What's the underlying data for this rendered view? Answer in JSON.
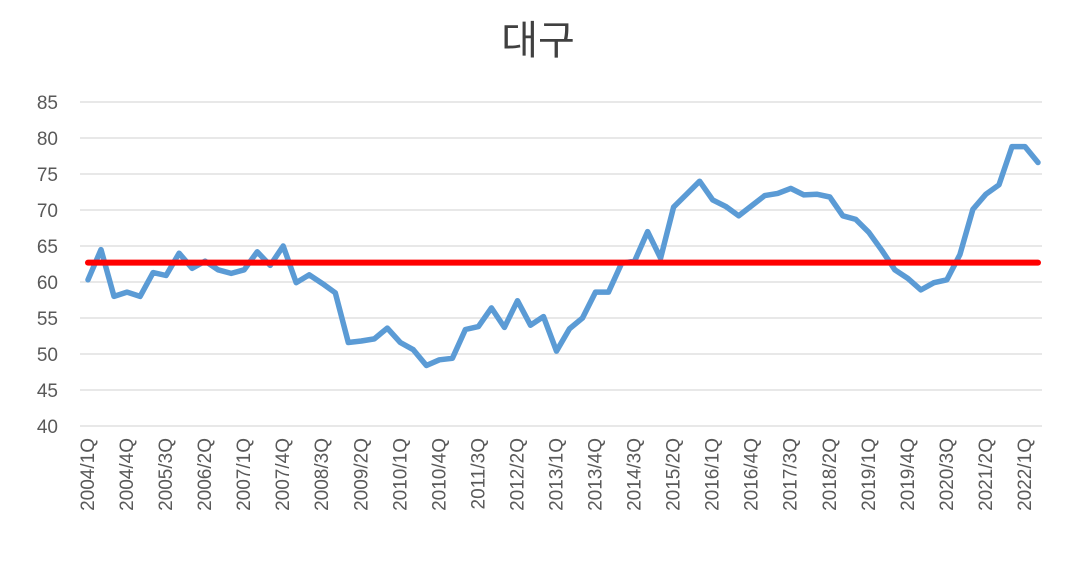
{
  "chart_data": {
    "type": "line",
    "title": "대구",
    "xlabel": "",
    "ylabel": "",
    "ylim": [
      40,
      85
    ],
    "yticks": [
      40,
      45,
      50,
      55,
      60,
      65,
      70,
      75,
      80,
      85
    ],
    "grid": true,
    "x_tick_labels": [
      "2004/1Q",
      "2004/4Q",
      "2005/3Q",
      "2006/2Q",
      "2007/1Q",
      "2007/4Q",
      "2008/3Q",
      "2009/2Q",
      "2010/1Q",
      "2010/4Q",
      "2011/3Q",
      "2012/2Q",
      "2013/1Q",
      "2013/4Q",
      "2014/3Q",
      "2015/2Q",
      "2016/1Q",
      "2016/4Q",
      "2017/3Q",
      "2018/2Q",
      "2019/1Q",
      "2019/4Q",
      "2020/3Q",
      "2021/2Q",
      "2022/1Q"
    ],
    "x": [
      "2004/1Q",
      "2004/2Q",
      "2004/3Q",
      "2004/4Q",
      "2005/1Q",
      "2005/2Q",
      "2005/3Q",
      "2005/4Q",
      "2006/1Q",
      "2006/2Q",
      "2006/3Q",
      "2006/4Q",
      "2007/1Q",
      "2007/2Q",
      "2007/3Q",
      "2007/4Q",
      "2008/1Q",
      "2008/2Q",
      "2008/3Q",
      "2008/4Q",
      "2009/1Q",
      "2009/2Q",
      "2009/3Q",
      "2009/4Q",
      "2010/1Q",
      "2010/2Q",
      "2010/3Q",
      "2010/4Q",
      "2011/1Q",
      "2011/2Q",
      "2011/3Q",
      "2011/4Q",
      "2012/1Q",
      "2012/2Q",
      "2012/3Q",
      "2012/4Q",
      "2013/1Q",
      "2013/2Q",
      "2013/3Q",
      "2013/4Q",
      "2014/1Q",
      "2014/2Q",
      "2014/3Q",
      "2014/4Q",
      "2015/1Q",
      "2015/2Q",
      "2015/3Q",
      "2015/4Q",
      "2016/1Q",
      "2016/2Q",
      "2016/3Q",
      "2016/4Q",
      "2017/1Q",
      "2017/2Q",
      "2017/3Q",
      "2017/4Q",
      "2018/1Q",
      "2018/2Q",
      "2018/3Q",
      "2018/4Q",
      "2019/1Q",
      "2019/2Q",
      "2019/3Q",
      "2019/4Q",
      "2020/1Q",
      "2020/2Q",
      "2020/3Q",
      "2020/4Q",
      "2021/1Q",
      "2021/2Q",
      "2021/3Q",
      "2021/4Q",
      "2022/1Q",
      "2022/2Q"
    ],
    "series": [
      {
        "color": "#5b9bd5",
        "values": [
          60.3,
          64.5,
          58.0,
          58.6,
          58.0,
          61.3,
          60.9,
          64.0,
          61.9,
          62.9,
          61.7,
          61.2,
          61.7,
          64.2,
          62.3,
          65.0,
          59.9,
          61.0,
          59.8,
          58.5,
          51.6,
          51.8,
          52.1,
          53.6,
          51.6,
          50.6,
          48.4,
          49.2,
          49.4,
          53.4,
          53.8,
          56.4,
          53.7,
          57.4,
          54.0,
          55.2,
          50.4,
          53.5,
          55.0,
          58.6,
          58.6,
          62.6,
          62.9,
          67.0,
          63.3,
          70.4,
          72.2,
          74.0,
          71.4,
          70.5,
          69.2,
          70.6,
          72.0,
          72.3,
          73.0,
          72.1,
          72.2,
          71.8,
          69.2,
          68.7,
          66.9,
          64.4,
          61.7,
          60.5,
          58.9,
          59.9,
          60.3,
          63.8,
          70.1,
          72.2,
          73.5,
          78.8,
          78.8,
          76.6
        ]
      },
      {
        "color": "#ff0000",
        "values": [
          62.7,
          62.7,
          62.7,
          62.7,
          62.7,
          62.7,
          62.7,
          62.7,
          62.7,
          62.7,
          62.7,
          62.7,
          62.7,
          62.7,
          62.7,
          62.7,
          62.7,
          62.7,
          62.7,
          62.7,
          62.7,
          62.7,
          62.7,
          62.7,
          62.7,
          62.7,
          62.7,
          62.7,
          62.7,
          62.7,
          62.7,
          62.7,
          62.7,
          62.7,
          62.7,
          62.7,
          62.7,
          62.7,
          62.7,
          62.7,
          62.7,
          62.7,
          62.7,
          62.7,
          62.7,
          62.7,
          62.7,
          62.7,
          62.7,
          62.7,
          62.7,
          62.7,
          62.7,
          62.7,
          62.7,
          62.7,
          62.7,
          62.7,
          62.7,
          62.7,
          62.7,
          62.7,
          62.7,
          62.7,
          62.7,
          62.7,
          62.7,
          62.7,
          62.7,
          62.7,
          62.7,
          62.7,
          62.7,
          62.7
        ]
      }
    ]
  }
}
